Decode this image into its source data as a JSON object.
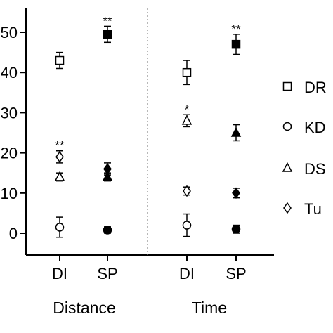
{
  "chart_data": {
    "type": "scatter",
    "title": "",
    "xlabel": "",
    "ylabel": "",
    "ylim": [
      -5,
      55
    ],
    "yticks": [
      "0",
      "10",
      "20",
      "30",
      "40",
      "50"
    ],
    "groups": [
      {
        "label": "Distance",
        "categories": [
          "DI",
          "SP"
        ]
      },
      {
        "label": "Time",
        "categories": [
          "DI",
          "SP"
        ]
      }
    ],
    "group_divider": "dotted",
    "series": [
      {
        "name": "DR",
        "marker": "square",
        "values": [
          {
            "group": "Distance",
            "category": "DI",
            "y": 43,
            "err": 2,
            "fill": "open"
          },
          {
            "group": "Distance",
            "category": "SP",
            "y": 49.5,
            "err": 2,
            "fill": "filled",
            "sig": "**"
          },
          {
            "group": "Time",
            "category": "DI",
            "y": 40,
            "err": 3,
            "fill": "open"
          },
          {
            "group": "Time",
            "category": "SP",
            "y": 47,
            "err": 2.5,
            "fill": "filled",
            "sig": "**"
          }
        ]
      },
      {
        "name": "KD",
        "marker": "circle",
        "values": [
          {
            "group": "Distance",
            "category": "DI",
            "y": 1.5,
            "err": 2.5,
            "fill": "open"
          },
          {
            "group": "Distance",
            "category": "SP",
            "y": 0.8,
            "err": 0.8,
            "fill": "filled"
          },
          {
            "group": "Time",
            "category": "DI",
            "y": 2,
            "err": 2.8,
            "fill": "open"
          },
          {
            "group": "Time",
            "category": "SP",
            "y": 1,
            "err": 1,
            "fill": "filled"
          }
        ]
      },
      {
        "name": "DS",
        "marker": "triangle",
        "values": [
          {
            "group": "Distance",
            "category": "DI",
            "y": 14,
            "err": 1,
            "fill": "open"
          },
          {
            "group": "Distance",
            "category": "SP",
            "y": 14,
            "err": 1,
            "fill": "filled"
          },
          {
            "group": "Time",
            "category": "DI",
            "y": 28,
            "err": 1.5,
            "fill": "open",
            "sig": "*"
          },
          {
            "group": "Time",
            "category": "SP",
            "y": 25,
            "err": 2,
            "fill": "filled"
          }
        ]
      },
      {
        "name": "Tu",
        "marker": "diamond",
        "values": [
          {
            "group": "Distance",
            "category": "DI",
            "y": 19,
            "err": 1.5,
            "fill": "open",
            "sig": "**"
          },
          {
            "group": "Distance",
            "category": "SP",
            "y": 16,
            "err": 1.5,
            "fill": "filled"
          },
          {
            "group": "Time",
            "category": "DI",
            "y": 10.5,
            "err": 1,
            "fill": "open"
          },
          {
            "group": "Time",
            "category": "SP",
            "y": 10,
            "err": 1.2,
            "fill": "filled"
          }
        ]
      }
    ],
    "legend_position": "right",
    "grid": false
  }
}
